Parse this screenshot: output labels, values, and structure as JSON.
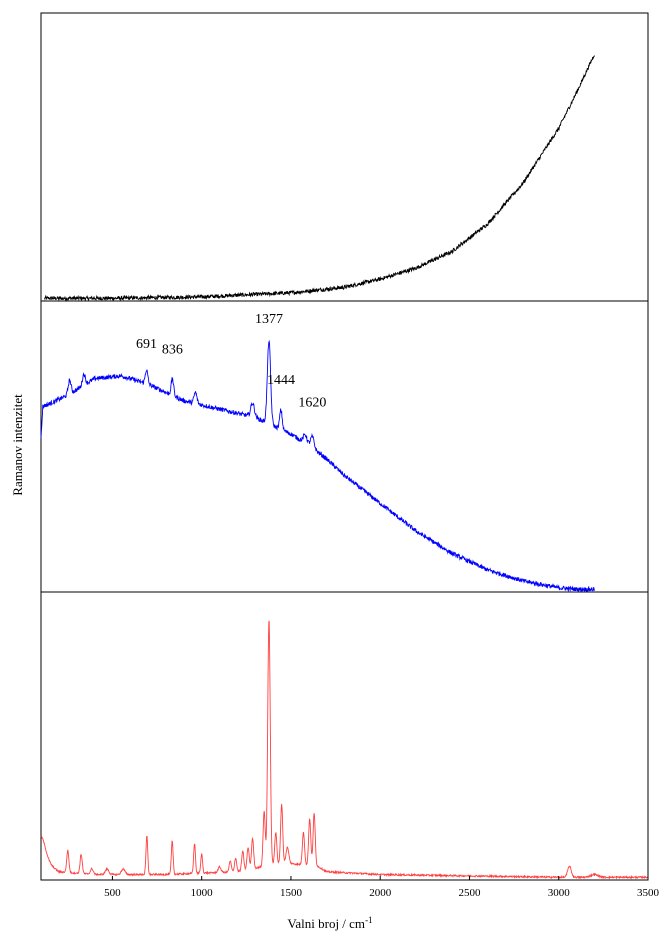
{
  "chart_data": {
    "type": "line",
    "xlabel": "Valni broj / cm",
    "xlabel_superscript": "-1",
    "ylabel": "Ramanov intenzitet",
    "xlim": [
      100,
      3500
    ],
    "x_ticks": [
      "500",
      "1000",
      "1500",
      "2000",
      "2500",
      "3000",
      "3500"
    ],
    "x_tick_values": [
      500,
      1000,
      1500,
      2000,
      2500,
      3000,
      3500
    ],
    "panels": [
      {
        "color": "#000000",
        "ylim": [
          0,
          1.05
        ],
        "noise": 0.007,
        "series": {
          "x": [
            120,
            500,
            1000,
            1500,
            1800,
            2000,
            2200,
            2400,
            2600,
            2800,
            3000,
            3100,
            3200
          ],
          "y": [
            0.01,
            0.01,
            0.015,
            0.03,
            0.05,
            0.08,
            0.12,
            0.18,
            0.28,
            0.43,
            0.63,
            0.76,
            0.9
          ]
        },
        "peaks": []
      },
      {
        "color": "#0000ff",
        "ylim": [
          0,
          1.05
        ],
        "noise": 0.008,
        "series": {
          "x": [
            100,
            110,
            150,
            250,
            400,
            550,
            700,
            900,
            1100,
            1300,
            1400,
            1500,
            1600,
            1700,
            1800,
            2000,
            2200,
            2400,
            2600,
            2800,
            3000,
            3100,
            3200
          ],
          "y": [
            0.55,
            0.67,
            0.68,
            0.71,
            0.77,
            0.78,
            0.75,
            0.69,
            0.66,
            0.63,
            0.6,
            0.57,
            0.53,
            0.48,
            0.42,
            0.32,
            0.22,
            0.14,
            0.08,
            0.04,
            0.015,
            0.01,
            0.01
          ]
        },
        "peaks": [
          {
            "x": 260,
            "h": 0.05,
            "w": 8
          },
          {
            "x": 340,
            "h": 0.04,
            "w": 8
          },
          {
            "x": 691,
            "h": 0.05,
            "w": 7
          },
          {
            "x": 836,
            "h": 0.06,
            "w": 7
          },
          {
            "x": 965,
            "h": 0.04,
            "w": 8
          },
          {
            "x": 1285,
            "h": 0.05,
            "w": 10
          },
          {
            "x": 1377,
            "h": 0.3,
            "w": 9
          },
          {
            "x": 1444,
            "h": 0.07,
            "w": 7
          },
          {
            "x": 1580,
            "h": 0.03,
            "w": 10
          },
          {
            "x": 1620,
            "h": 0.04,
            "w": 10
          }
        ],
        "labels": [
          {
            "text": "691",
            "x": 691,
            "y": 0.88
          },
          {
            "text": "836",
            "x": 836,
            "y": 0.86
          },
          {
            "text": "1377",
            "x": 1377,
            "y": 0.97
          },
          {
            "text": "1444",
            "x": 1444,
            "y": 0.75
          },
          {
            "text": "1620",
            "x": 1620,
            "y": 0.67
          }
        ]
      },
      {
        "color": "#ff4040",
        "ylim": [
          0,
          1.05
        ],
        "noise": 0.003,
        "series": {
          "x": [
            100,
            200,
            400,
            800,
            1200,
            1350,
            1500,
            1650,
            1700,
            2000,
            2500,
            3000,
            3500
          ],
          "y": [
            0.08,
            0.03,
            0.02,
            0.02,
            0.03,
            0.05,
            0.06,
            0.05,
            0.03,
            0.02,
            0.015,
            0.01,
            0.01
          ]
        },
        "peaks": [
          {
            "x": 100,
            "h": 0.08,
            "w": 25
          },
          {
            "x": 250,
            "h": 0.08,
            "w": 6
          },
          {
            "x": 325,
            "h": 0.07,
            "w": 6
          },
          {
            "x": 385,
            "h": 0.02,
            "w": 8
          },
          {
            "x": 470,
            "h": 0.02,
            "w": 10
          },
          {
            "x": 560,
            "h": 0.02,
            "w": 10
          },
          {
            "x": 693,
            "h": 0.14,
            "w": 5
          },
          {
            "x": 835,
            "h": 0.12,
            "w": 5
          },
          {
            "x": 960,
            "h": 0.11,
            "w": 5
          },
          {
            "x": 1000,
            "h": 0.07,
            "w": 5
          },
          {
            "x": 1100,
            "h": 0.02,
            "w": 8
          },
          {
            "x": 1160,
            "h": 0.04,
            "w": 6
          },
          {
            "x": 1190,
            "h": 0.05,
            "w": 6
          },
          {
            "x": 1230,
            "h": 0.07,
            "w": 6
          },
          {
            "x": 1260,
            "h": 0.08,
            "w": 6
          },
          {
            "x": 1285,
            "h": 0.11,
            "w": 6
          },
          {
            "x": 1350,
            "h": 0.2,
            "w": 6
          },
          {
            "x": 1377,
            "h": 0.9,
            "w": 7
          },
          {
            "x": 1415,
            "h": 0.12,
            "w": 6
          },
          {
            "x": 1448,
            "h": 0.22,
            "w": 6
          },
          {
            "x": 1480,
            "h": 0.06,
            "w": 8
          },
          {
            "x": 1570,
            "h": 0.12,
            "w": 6
          },
          {
            "x": 1605,
            "h": 0.17,
            "w": 6
          },
          {
            "x": 1630,
            "h": 0.19,
            "w": 6
          },
          {
            "x": 3060,
            "h": 0.04,
            "w": 10
          },
          {
            "x": 3200,
            "h": 0.01,
            "w": 20
          }
        ]
      }
    ]
  }
}
